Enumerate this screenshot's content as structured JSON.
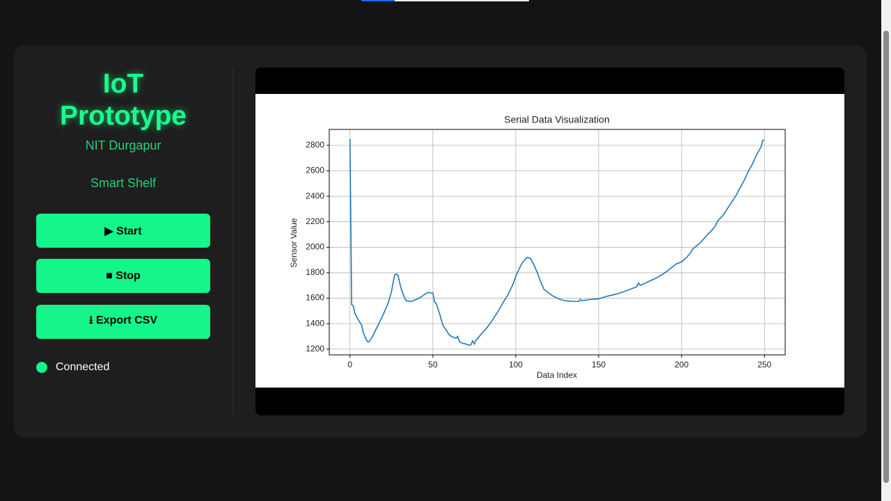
{
  "app": {
    "title": "IoT Prototype",
    "subtitle": "NIT Durgapur",
    "project": "Smart Shelf",
    "buttons": [
      "▶ Start",
      "■ Stop",
      "⭳ Export CSV"
    ],
    "status": "Connected"
  },
  "chart_data": {
    "type": "line",
    "title": "Serial Data Visualization",
    "xlabel": "Data Index",
    "ylabel": "Sensor Value",
    "x": [
      0,
      1,
      2,
      3,
      5,
      7,
      8,
      10,
      11,
      12,
      14,
      17,
      20,
      23,
      25,
      26,
      27,
      28,
      29,
      30,
      31,
      33,
      34,
      37,
      40,
      43,
      45,
      47,
      50,
      51,
      52,
      54,
      56,
      58,
      60,
      62,
      64,
      65,
      66,
      68,
      70,
      72,
      73,
      74,
      75,
      76,
      78,
      80,
      83,
      85,
      88,
      90,
      93,
      95,
      98,
      100,
      102,
      104,
      106,
      107,
      109,
      111,
      113,
      115,
      117,
      120,
      122,
      125,
      128,
      130,
      135,
      138,
      139,
      140,
      145,
      150,
      155,
      160,
      165,
      170,
      173,
      174,
      175,
      180,
      185,
      190,
      195,
      197,
      200,
      203,
      205,
      207,
      210,
      213,
      215,
      218,
      220,
      222,
      225,
      228,
      230,
      233,
      235,
      238,
      240,
      243,
      245,
      248,
      249,
      250
    ],
    "values": [
      2850,
      1550,
      1540,
      1480,
      1430,
      1390,
      1330,
      1270,
      1255,
      1265,
      1310,
      1390,
      1470,
      1560,
      1650,
      1720,
      1785,
      1790,
      1780,
      1720,
      1670,
      1600,
      1580,
      1575,
      1590,
      1610,
      1630,
      1645,
      1640,
      1570,
      1560,
      1480,
      1390,
      1350,
      1310,
      1295,
      1285,
      1300,
      1260,
      1245,
      1240,
      1230,
      1235,
      1265,
      1240,
      1270,
      1300,
      1330,
      1375,
      1410,
      1470,
      1510,
      1580,
      1620,
      1700,
      1770,
      1830,
      1880,
      1910,
      1920,
      1910,
      1860,
      1800,
      1730,
      1670,
      1640,
      1620,
      1600,
      1585,
      1580,
      1575,
      1575,
      1590,
      1580,
      1590,
      1595,
      1615,
      1630,
      1650,
      1675,
      1690,
      1720,
      1700,
      1730,
      1760,
      1800,
      1850,
      1870,
      1885,
      1920,
      1950,
      1990,
      2020,
      2060,
      2090,
      2130,
      2160,
      2210,
      2250,
      2310,
      2350,
      2410,
      2460,
      2530,
      2590,
      2660,
      2720,
      2790,
      2840,
      2840
    ],
    "color": "#1f77b4",
    "xlim": [
      -12.5,
      262.5
    ],
    "xticks": [
      0,
      50,
      100,
      150,
      200,
      250
    ],
    "ylim": [
      1155,
      2925
    ],
    "yticks": [
      1200,
      1400,
      1600,
      1800,
      2000,
      2200,
      2400,
      2600,
      2800
    ],
    "grid": true
  }
}
